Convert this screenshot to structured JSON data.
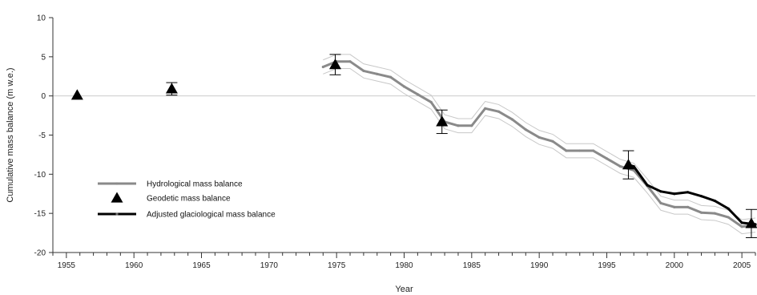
{
  "chart_data": {
    "type": "line",
    "title": "",
    "xlabel": "Year",
    "ylabel": "Cumulative mass balance (m w.e.)",
    "xlim": [
      1954,
      2006
    ],
    "ylim": [
      -20,
      10
    ],
    "xticks": [
      1955,
      1960,
      1965,
      1970,
      1975,
      1980,
      1985,
      1990,
      1995,
      2000,
      2005
    ],
    "yticks": [
      10,
      5,
      0,
      -5,
      -10,
      -15,
      -20
    ],
    "grid": false,
    "zero_line": true,
    "legend_position": "bottom-left",
    "series": [
      {
        "name": "Hydrological mass balance",
        "kind": "line",
        "color": "#8a8a8a",
        "band_color": "#c8c8c8",
        "x": [
          1974,
          1975,
          1976,
          1977,
          1978,
          1979,
          1980,
          1981,
          1982,
          1983,
          1984,
          1985,
          1986,
          1987,
          1988,
          1989,
          1990,
          1991,
          1992,
          1993,
          1994,
          1995,
          1996,
          1997,
          1998,
          1999,
          2000,
          2001,
          2002,
          2003,
          2004,
          2005,
          2006
        ],
        "y": [
          3.7,
          4.4,
          4.4,
          3.2,
          2.8,
          2.4,
          1.2,
          0.2,
          -0.8,
          -3.3,
          -3.8,
          -3.8,
          -1.6,
          -2.0,
          -3.0,
          -4.3,
          -5.3,
          -5.8,
          -7.0,
          -7.0,
          -7.0,
          -8.0,
          -9.0,
          -9.5,
          -11.5,
          -13.7,
          -14.2,
          -14.2,
          -14.9,
          -15.0,
          -15.5,
          -16.7,
          -16.5
        ],
        "band_offset": 0.9
      },
      {
        "name": "Geodetic mass balance",
        "kind": "marker",
        "color": "#000000",
        "x": [
          1955.8,
          1962.8,
          1974.9,
          1982.8,
          1996.6,
          2005.7
        ],
        "y": [
          0.1,
          0.9,
          4.0,
          -3.3,
          -8.8,
          -16.3
        ],
        "err": [
          0,
          0.8,
          1.3,
          1.5,
          1.8,
          1.8
        ]
      },
      {
        "name": "Adjusted glaciological mass balance",
        "kind": "line",
        "color": "#000000",
        "x": [
          1996.6,
          1997,
          1998,
          1999,
          2000,
          2001,
          2002,
          2003,
          2004,
          2005,
          2006
        ],
        "y": [
          -8.8,
          -9.0,
          -11.4,
          -12.2,
          -12.5,
          -12.3,
          -12.8,
          -13.4,
          -14.4,
          -16.2,
          -16.4
        ]
      }
    ]
  }
}
